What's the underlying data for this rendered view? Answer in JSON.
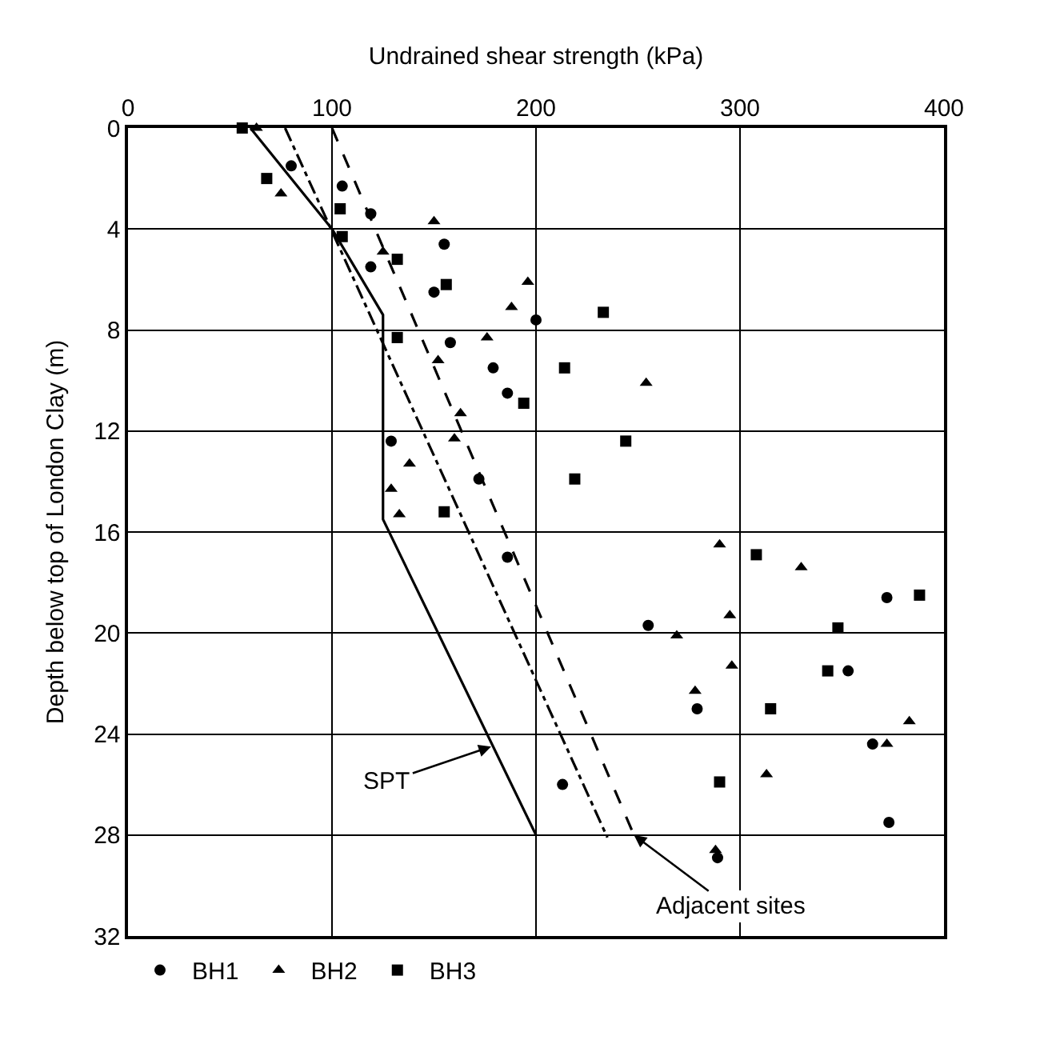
{
  "chart_data": {
    "type": "scatter",
    "xlabel": "Undrained shear strength (kPa)",
    "ylabel": "Depth below top of London Clay (m)",
    "xlim": [
      0,
      400
    ],
    "xticks": [
      0,
      100,
      200,
      300,
      400
    ],
    "ylim": [
      32,
      0
    ],
    "yticks": [
      0,
      4,
      8,
      12,
      16,
      20,
      24,
      28,
      32
    ],
    "grid": true,
    "legend": "bottom left",
    "series": [
      {
        "name": "BH1",
        "color": "#000000",
        "marker": "circle",
        "x": [
          80,
          105,
          119,
          155,
          119,
          150,
          200,
          158,
          179,
          186,
          129,
          172,
          186,
          255,
          213,
          372,
          353,
          279,
          365,
          373,
          289
        ],
        "values": [
          1.5,
          2.3,
          3.4,
          4.6,
          5.5,
          6.5,
          7.6,
          8.5,
          9.5,
          10.5,
          12.4,
          13.9,
          17.0,
          19.7,
          26.0,
          18.6,
          21.5,
          23.0,
          24.4,
          27.5,
          28.9
        ]
      },
      {
        "name": "BH2",
        "color": "#000000",
        "marker": "triangle",
        "x": [
          63,
          75,
          150,
          125,
          196,
          188,
          176,
          152,
          163,
          160,
          138,
          129,
          133,
          254,
          290,
          330,
          295,
          269,
          296,
          278,
          383,
          372,
          313,
          288
        ],
        "values": [
          0,
          2.6,
          3.7,
          4.9,
          6.1,
          7.1,
          8.3,
          9.2,
          11.3,
          12.3,
          13.3,
          14.3,
          15.3,
          10.1,
          16.5,
          17.4,
          19.3,
          20.1,
          21.3,
          22.3,
          23.5,
          24.4,
          25.6,
          28.6
        ]
      },
      {
        "name": "BH3",
        "color": "#000000",
        "marker": "square",
        "x": [
          56,
          68,
          104,
          105,
          132,
          156,
          233,
          132,
          214,
          194,
          244,
          219,
          155,
          308,
          388,
          348,
          343,
          315,
          290
        ],
        "values": [
          0,
          2.0,
          3.2,
          4.3,
          5.2,
          6.2,
          7.3,
          8.3,
          9.5,
          10.9,
          12.4,
          13.9,
          15.2,
          16.9,
          18.5,
          19.8,
          21.5,
          23.0,
          25.9
        ]
      },
      {
        "type": "line",
        "color": "#000000",
        "line_style": "solid",
        "marker": "none",
        "x": [
          60,
          100,
          125,
          125,
          200
        ],
        "values": [
          0,
          4,
          7.4,
          15.5,
          28
        ]
      },
      {
        "type": "line",
        "color": "#000000",
        "line_style": "dashdot",
        "marker": "none",
        "x": [
          77,
          235
        ],
        "values": [
          0,
          28.1
        ]
      },
      {
        "type": "line",
        "color": "#000000",
        "line_style": "dashed",
        "marker": "none",
        "x": [
          100,
          248
        ],
        "values": [
          0,
          28
        ]
      }
    ],
    "annotations": [
      {
        "text": "SPT",
        "x": 178,
        "y": 24.5
      },
      {
        "text": "Adjacent sites",
        "x": 248,
        "y": 28
      }
    ]
  }
}
